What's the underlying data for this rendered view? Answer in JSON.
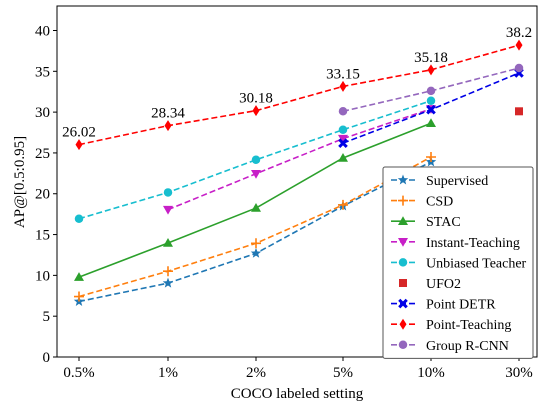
{
  "chart_data": {
    "type": "line",
    "xlabel": "COCO labeled setting",
    "ylabel": "AP@[0.5:0.95]",
    "categories": [
      "0.5%",
      "1%",
      "2%",
      "5%",
      "10%",
      "30%"
    ],
    "ylim": [
      0,
      43
    ],
    "yticks": [
      0,
      5,
      10,
      15,
      20,
      25,
      30,
      35,
      40
    ],
    "grid": false,
    "legend_position": "lower-right",
    "series": [
      {
        "name": "Supervised",
        "values": [
          6.8,
          9.05,
          12.7,
          18.5,
          23.9,
          null
        ],
        "color": "#1f77b4",
        "marker": "star",
        "dash": true
      },
      {
        "name": "CSD",
        "values": [
          7.41,
          10.51,
          13.93,
          18.63,
          24.5,
          null
        ],
        "color": "#ff7f0e",
        "marker": "plus",
        "dash": true
      },
      {
        "name": "STAC",
        "values": [
          9.78,
          13.97,
          18.25,
          24.38,
          28.64,
          null
        ],
        "color": "#2ca02c",
        "marker": "triangle-up",
        "dash": false
      },
      {
        "name": "Instant-Teaching",
        "values": [
          null,
          18.05,
          22.45,
          26.75,
          30.4,
          null
        ],
        "color": "#c71fc7",
        "marker": "triangle-down",
        "dash": true
      },
      {
        "name": "Unbiased Teacher",
        "values": [
          16.94,
          20.16,
          24.16,
          27.84,
          31.39,
          null
        ],
        "color": "#17becf",
        "marker": "circle",
        "dash": true
      },
      {
        "name": "UFO2",
        "values": [
          null,
          null,
          null,
          null,
          null,
          30.1
        ],
        "color": "#d62728",
        "marker": "square",
        "dash": false
      },
      {
        "name": "Point DETR",
        "values": [
          null,
          null,
          null,
          26.2,
          30.3,
          34.8
        ],
        "color": "#0000e6",
        "marker": "x",
        "dash": true
      },
      {
        "name": "Point-Teaching",
        "values": [
          26.02,
          28.34,
          30.18,
          33.15,
          35.18,
          38.2
        ],
        "color": "#ff0000",
        "marker": "diamond",
        "dash": true
      },
      {
        "name": "Group R-CNN",
        "values": [
          null,
          null,
          null,
          30.1,
          32.6,
          35.4
        ],
        "color": "#9467bd",
        "marker": "circle",
        "dash": true
      }
    ],
    "annotations": [
      "26.02",
      "28.34",
      "30.18",
      "33.15",
      "35.18",
      "38.2"
    ]
  }
}
